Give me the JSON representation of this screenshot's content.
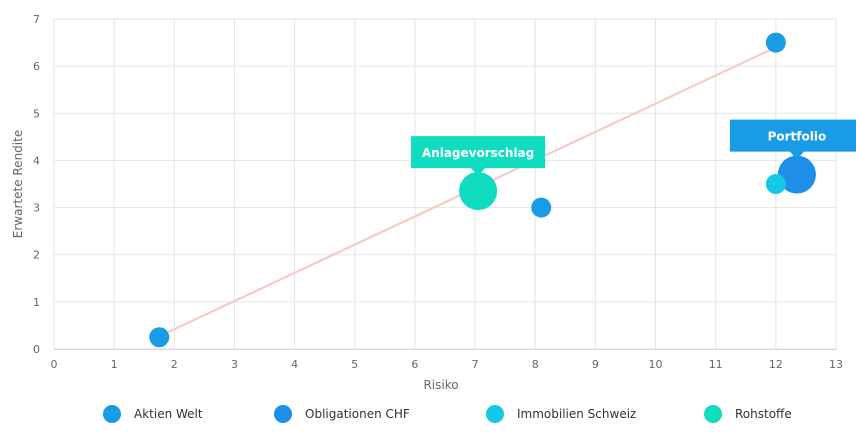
{
  "chart_data": {
    "type": "scatter",
    "xlabel": "Risiko",
    "ylabel": "Erwartete Rendite",
    "xlim": [
      0,
      13
    ],
    "ylim": [
      0,
      7
    ],
    "x_ticks": [
      "0",
      "1",
      "2",
      "3",
      "4",
      "5",
      "6",
      "7",
      "8",
      "9",
      "10",
      "11",
      "12",
      "13"
    ],
    "y_ticks": [
      "0",
      "1",
      "2",
      "3",
      "4",
      "5",
      "6",
      "7"
    ],
    "grid": true,
    "legend_position": "bottom",
    "trendline": {
      "x": [
        1.8,
        12.0
      ],
      "y": [
        0.3,
        6.4
      ],
      "color": "#f9c6c3"
    },
    "series": [
      {
        "name": "Aktien Welt",
        "color": "#1a9be6",
        "points": [
          {
            "x": 12.0,
            "y": 6.5
          },
          {
            "x": 8.1,
            "y": 3.0
          },
          {
            "x": 1.75,
            "y": 0.25
          }
        ]
      },
      {
        "name": "Obligationen CHF",
        "color": "#1e8fe8",
        "points": [
          {
            "x": 12.35,
            "y": 3.7,
            "size": "large"
          }
        ]
      },
      {
        "name": "Immobilien Schweiz",
        "color": "#16c8e8",
        "points": [
          {
            "x": 12.0,
            "y": 3.5
          }
        ]
      },
      {
        "name": "Rohstoffe",
        "color": "#10dcc0",
        "points": [
          {
            "x": 7.05,
            "y": 3.35,
            "size": "large"
          }
        ]
      }
    ],
    "annotations": [
      {
        "text": "Anlagevorschlag",
        "x": 7.05,
        "y": 3.35,
        "color": "#10dcc0"
      },
      {
        "text": "Portfolio",
        "x": 12.35,
        "y": 3.7,
        "color": "#1a9be6"
      }
    ]
  }
}
